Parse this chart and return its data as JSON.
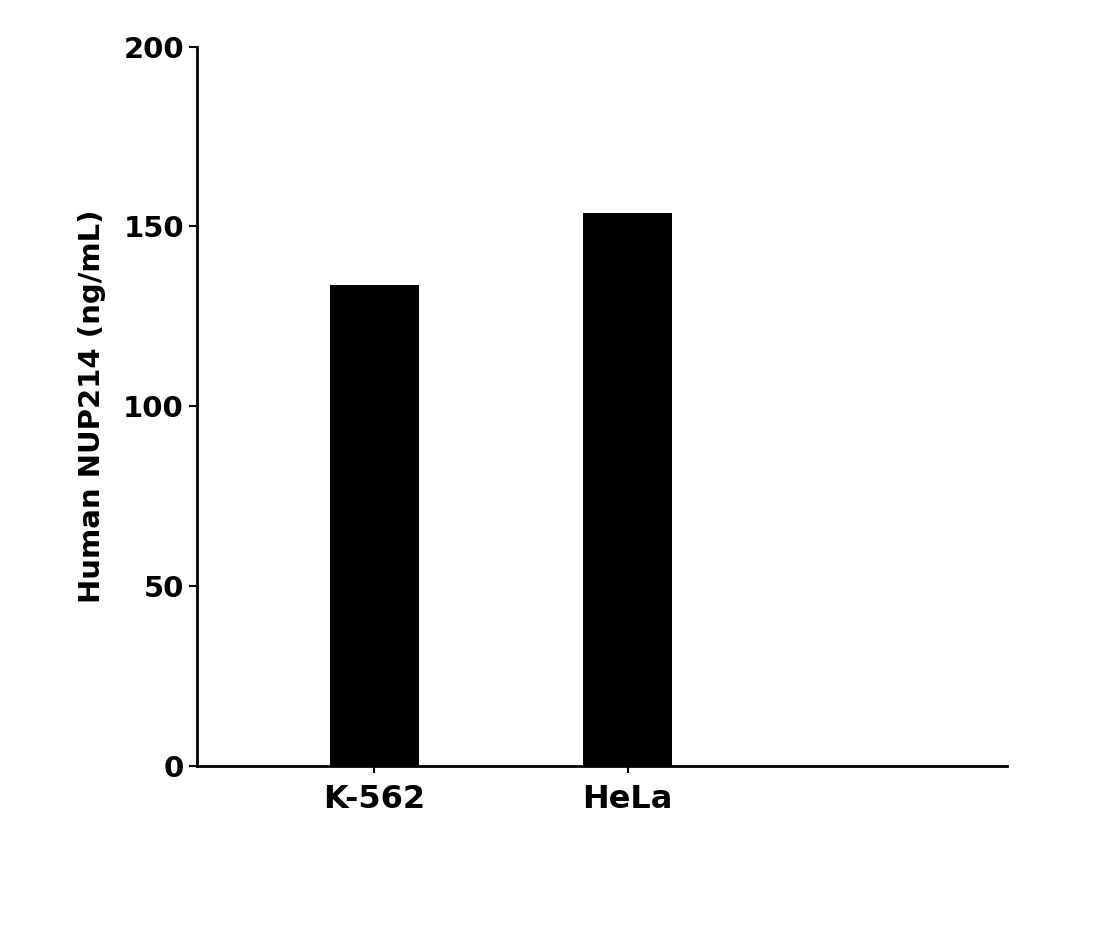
{
  "categories": [
    "K-562",
    "HeLa"
  ],
  "values": [
    133.7,
    153.72
  ],
  "bar_color": "#000000",
  "bar_width": 0.35,
  "ylabel": "Human NUP214 (ng/mL)",
  "ylim": [
    0,
    200
  ],
  "yticks": [
    0,
    50,
    100,
    150,
    200
  ],
  "background_color": "#ffffff",
  "ylabel_fontsize": 21,
  "tick_fontsize": 21,
  "xtick_fontsize": 23,
  "x_positions": [
    1,
    2
  ],
  "xlim": [
    0.3,
    3.5
  ]
}
